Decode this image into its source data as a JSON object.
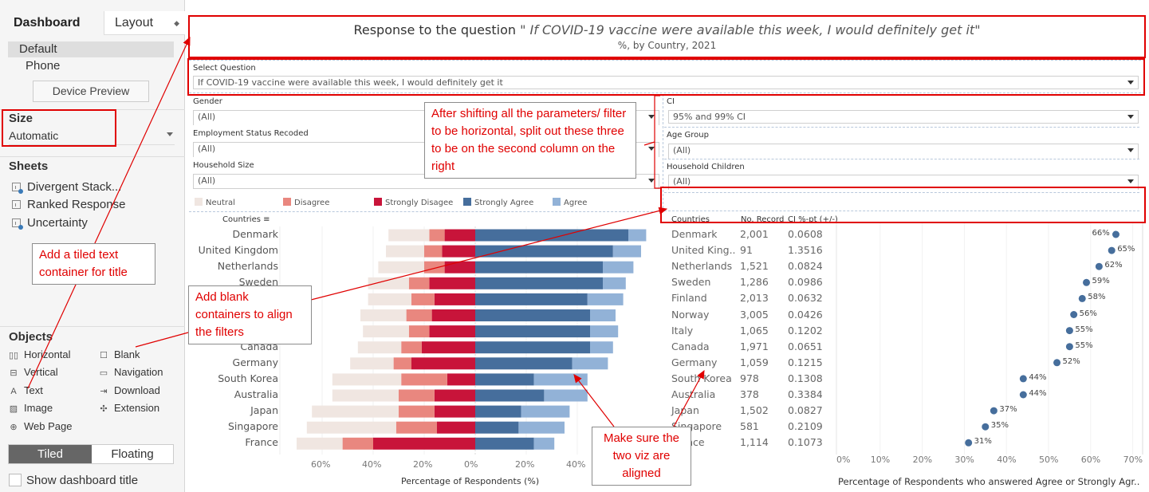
{
  "left_pane": {
    "tabs": [
      {
        "label": "Dashboard",
        "active": true
      },
      {
        "label": "Layout",
        "active": false
      }
    ],
    "devices": [
      "Default",
      "Phone"
    ],
    "device_preview_label": "Device Preview",
    "size": {
      "title": "Size",
      "value": "Automatic"
    },
    "sheets": {
      "title": "Sheets",
      "items": [
        {
          "label": "Divergent Stack...",
          "icon": "worksheet-in-use-icon"
        },
        {
          "label": "Ranked Response",
          "icon": "worksheet-icon"
        },
        {
          "label": "Uncertainty",
          "icon": "worksheet-in-use-icon"
        }
      ]
    },
    "objects": {
      "title": "Objects",
      "items": [
        {
          "label": "Horizontal",
          "icon": "horizontal-container-icon",
          "glyph": "▯▯"
        },
        {
          "label": "Blank",
          "icon": "blank-icon",
          "glyph": "☐"
        },
        {
          "label": "Vertical",
          "icon": "vertical-container-icon",
          "glyph": "⊟"
        },
        {
          "label": "Navigation",
          "icon": "navigation-icon",
          "glyph": "▭"
        },
        {
          "label": "Text",
          "icon": "text-icon",
          "glyph": "A"
        },
        {
          "label": "Download",
          "icon": "download-icon",
          "glyph": "⇥"
        },
        {
          "label": "Image",
          "icon": "image-icon",
          "glyph": "▨"
        },
        {
          "label": "Extension",
          "icon": "extension-icon",
          "glyph": "✣"
        },
        {
          "label": "Web Page",
          "icon": "web-page-icon",
          "glyph": "⊕"
        }
      ]
    },
    "layout_mode": {
      "tiled": "Tiled",
      "floating": "Floating",
      "selected": "Tiled"
    },
    "show_dashboard_title": {
      "label": "Show dashboard title",
      "checked": false
    }
  },
  "dashboard": {
    "title": {
      "prefix": "Response to the question ",
      "question": "\" If COVID-19 vaccine were available this week, I would definitely get it\"",
      "subtitle": "%, by Country, 2021"
    },
    "filters_left": [
      {
        "label": "Select Question",
        "value": "If COVID-19 vaccine were available this week, I would definitely get it"
      },
      {
        "label": "Gender",
        "value": "(All)"
      },
      {
        "label": "Employment Status Recoded",
        "value": "(All)"
      },
      {
        "label": "Household Size",
        "value": "(All)"
      }
    ],
    "filters_right": [
      {
        "label": "CI",
        "value": "95% and 99% CI"
      },
      {
        "label": "Age Group",
        "value": "(All)"
      },
      {
        "label": "Household Children",
        "value": "(All)"
      }
    ],
    "legend": [
      {
        "label": "Neutral",
        "color": "#f0e6e1"
      },
      {
        "label": "Disagree",
        "color": "#e9877f"
      },
      {
        "label": "Strongly Disagee",
        "color": "#c8143a"
      },
      {
        "label": "Strongly Agree",
        "color": "#466e9c"
      },
      {
        "label": "Agree",
        "color": "#92b2d7"
      }
    ],
    "table": {
      "headers": {
        "country": "Countries",
        "records": "No. Record",
        "ci": "CI %-pt (+/-)"
      },
      "rows": [
        {
          "country": "Denmark",
          "records": "2,001",
          "ci": "0.0608"
        },
        {
          "country": "United King..",
          "records": "91",
          "ci": "1.3516"
        },
        {
          "country": "Netherlands",
          "records": "1,521",
          "ci": "0.0824"
        },
        {
          "country": "Sweden",
          "records": "1,286",
          "ci": "0.0986"
        },
        {
          "country": "Finland",
          "records": "2,013",
          "ci": "0.0632"
        },
        {
          "country": "Norway",
          "records": "3,005",
          "ci": "0.0426"
        },
        {
          "country": "Italy",
          "records": "1,065",
          "ci": "0.1202"
        },
        {
          "country": "Canada",
          "records": "1,971",
          "ci": "0.0651"
        },
        {
          "country": "Germany",
          "records": "1,059",
          "ci": "0.1215"
        },
        {
          "country": "South Korea",
          "records": "978",
          "ci": "0.1308"
        },
        {
          "country": "Australia",
          "records": "378",
          "ci": "0.3384"
        },
        {
          "country": "Japan",
          "records": "1,502",
          "ci": "0.0827"
        },
        {
          "country": "Singapore",
          "records": "581",
          "ci": "0.2109"
        },
        {
          "country": "France",
          "records": "1,114",
          "ci": "0.1073"
        }
      ]
    }
  },
  "chart_data": [
    {
      "type": "bar",
      "subtype": "diverging-stacked",
      "title": "",
      "ylabel": "Countries",
      "xlabel": "Percentage of Respondents (%)",
      "categories": [
        "Denmark",
        "United Kingdom",
        "Netherlands",
        "Sweden",
        "Finland",
        "Norway",
        "Italy",
        "Canada",
        "Germany",
        "South Korea",
        "Australia",
        "Japan",
        "Singapore",
        "France"
      ],
      "xlim": [
        -70,
        70
      ],
      "x_ticks": [
        "60%",
        "40%",
        "20%",
        "0%",
        "20%",
        "40%"
      ],
      "x_tick_values": [
        -60,
        -40,
        -20,
        0,
        20,
        40
      ],
      "series": [
        {
          "name": "Strongly Disagee",
          "side": "left",
          "color": "#c8143a",
          "values": [
            12,
            13,
            12,
            18,
            16,
            17,
            18,
            21,
            25,
            11,
            16,
            16,
            15,
            40
          ]
        },
        {
          "name": "Disagree",
          "side": "left",
          "color": "#e9877f",
          "values": [
            6,
            7,
            8,
            8,
            9,
            10,
            8,
            8,
            7,
            18,
            14,
            14,
            16,
            12
          ]
        },
        {
          "name": "Neutral",
          "side": "left",
          "color": "#f0e6e1",
          "values": [
            16,
            15,
            18,
            16,
            17,
            18,
            18,
            17,
            17,
            27,
            26,
            34,
            35,
            18
          ]
        },
        {
          "name": "Strongly Agree",
          "side": "right",
          "color": "#466e9c",
          "values": [
            60,
            54,
            50,
            50,
            44,
            45,
            45,
            45,
            38,
            23,
            27,
            18,
            17,
            23
          ]
        },
        {
          "name": "Agree",
          "side": "right",
          "color": "#92b2d7",
          "values": [
            7,
            11,
            12,
            9,
            14,
            10,
            11,
            9,
            14,
            21,
            17,
            19,
            18,
            8
          ]
        }
      ],
      "legend": "top"
    },
    {
      "type": "scatter",
      "subtype": "dot-plot",
      "xlabel": "Percentage of Respondents who answered Agree or Strongly Agr..",
      "categories": [
        "Denmark",
        "United Kingdom",
        "Netherlands",
        "Sweden",
        "Finland",
        "Norway",
        "Italy",
        "Canada",
        "Germany",
        "South Korea",
        "Australia",
        "Japan",
        "Singapore",
        "France"
      ],
      "values": [
        66,
        65,
        62,
        59,
        58,
        56,
        55,
        55,
        52,
        44,
        44,
        37,
        35,
        31
      ],
      "labels": [
        "66%",
        "65%",
        "62%",
        "59%",
        "58%",
        "56%",
        "55%",
        "55%",
        "52%",
        "44%",
        "44%",
        "37%",
        "35%",
        "31%"
      ],
      "xlim": [
        0,
        70
      ],
      "x_ticks": [
        "0%",
        "10%",
        "20%",
        "30%",
        "40%",
        "50%",
        "60%",
        "70%"
      ],
      "color": "#466e9c"
    }
  ],
  "annotations": {
    "title_callout": "Add a tiled text container for title",
    "blank_callout": "Add blank containers to align the filters",
    "filters_callout": "After shifting all the parameters/ filter to be horizontal, split out these three to be on the second column on the right",
    "align_callout": "Make sure the two viz are aligned",
    "color": "#e00000"
  }
}
